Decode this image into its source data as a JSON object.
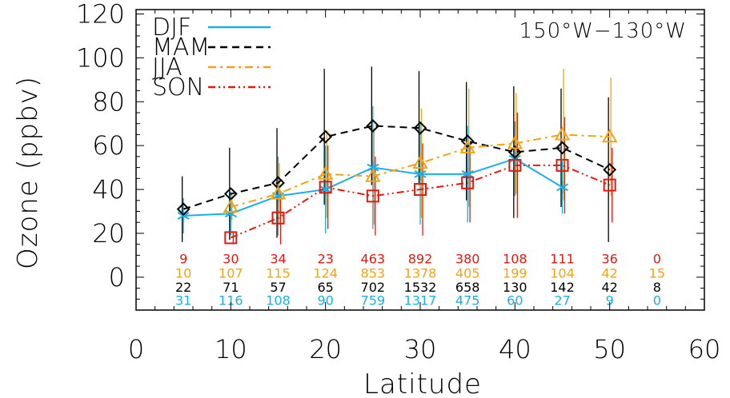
{
  "chart_data": {
    "type": "line",
    "region": "150°W−130°W",
    "xlabel": "Latitude",
    "ylabel": "Ozone (ppbv)",
    "xlim": [
      0,
      60
    ],
    "ylim": [
      -15,
      122
    ],
    "xticks": [
      0,
      10,
      20,
      30,
      40,
      50,
      60
    ],
    "yticks": [
      0,
      20,
      40,
      60,
      80,
      100,
      120
    ],
    "legend_position": "top-left",
    "series": [
      {
        "name": "DJF",
        "color": "#1AAEE8",
        "linestyle": "solid",
        "marker": "asterisk",
        "x": [
          5,
          10,
          15,
          20,
          25,
          30,
          35,
          40,
          45
        ],
        "y": [
          28,
          29,
          37,
          40,
          50,
          47,
          47,
          54,
          41
        ],
        "err": [
          8,
          10,
          18,
          20,
          28,
          23,
          22,
          17,
          12
        ]
      },
      {
        "name": "MAM",
        "color": "#000000",
        "linestyle": "dashed",
        "marker": "diamond",
        "x": [
          5,
          10,
          15,
          20,
          25,
          30,
          35,
          40,
          45,
          50
        ],
        "y": [
          31,
          38,
          43,
          64,
          69,
          68,
          62,
          57,
          59,
          49
        ],
        "err": [
          15,
          21,
          25,
          31,
          27,
          26,
          27,
          30,
          27,
          33
        ]
      },
      {
        "name": "JJA",
        "color": "#F5A30F",
        "linestyle": "dashdot",
        "marker": "triangle",
        "x": [
          10,
          15,
          20,
          25,
          30,
          35,
          40,
          45,
          50
        ],
        "y": [
          32,
          38,
          47,
          46,
          52,
          59,
          61,
          65,
          64
        ],
        "err": [
          6,
          14,
          20,
          22,
          25,
          27,
          23,
          30,
          27
        ]
      },
      {
        "name": "SON",
        "color": "#E3190F",
        "linestyle": "dashdotdot",
        "marker": "square",
        "x": [
          10,
          15,
          20,
          25,
          30,
          35,
          40,
          45,
          50
        ],
        "y": [
          18,
          27,
          41,
          37,
          40,
          43,
          51,
          51,
          42
        ],
        "err": [
          3,
          12,
          19,
          18,
          21,
          18,
          24,
          22,
          17
        ]
      }
    ],
    "count_rows": [
      {
        "series": "SON",
        "color": "#E3190F",
        "y": 8.5,
        "x": [
          5,
          10,
          15,
          20,
          25,
          30,
          35,
          40,
          45,
          50,
          55
        ],
        "labels": [
          "9",
          "30",
          "34",
          "23",
          "463",
          "892",
          "380",
          "108",
          "111",
          "36",
          "0"
        ]
      },
      {
        "series": "JJA",
        "color": "#F5A30F",
        "y": 2,
        "x": [
          5,
          10,
          15,
          20,
          25,
          30,
          35,
          40,
          45,
          50,
          55
        ],
        "labels": [
          "10",
          "107",
          "115",
          "124",
          "853",
          "1378",
          "405",
          "199",
          "104",
          "42",
          "15"
        ]
      },
      {
        "series": "MAM",
        "color": "#000000",
        "y": -4.5,
        "x": [
          5,
          10,
          15,
          20,
          25,
          30,
          35,
          40,
          45,
          50,
          55
        ],
        "labels": [
          "22",
          "71",
          "57",
          "65",
          "702",
          "1532",
          "658",
          "130",
          "142",
          "42",
          "8"
        ]
      },
      {
        "series": "DJF",
        "color": "#1AAEE8",
        "y": -10.5,
        "x": [
          5,
          10,
          15,
          20,
          25,
          30,
          35,
          40,
          45,
          50,
          55
        ],
        "labels": [
          "31",
          "116",
          "108",
          "90",
          "759",
          "1317",
          "475",
          "60",
          "27",
          "9",
          "0"
        ]
      }
    ]
  }
}
